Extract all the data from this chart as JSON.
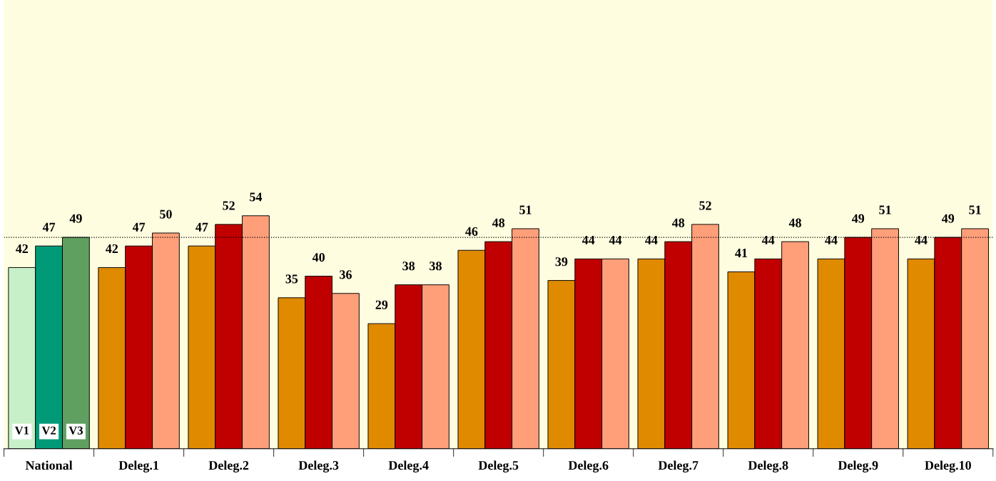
{
  "chart_data": {
    "type": "bar",
    "categories": [
      "National",
      "Deleg.1",
      "Deleg.2",
      "Deleg.3",
      "Deleg.4",
      "Deleg.5",
      "Deleg.6",
      "Deleg.7",
      "Deleg.8",
      "Deleg.9",
      "Deleg.10"
    ],
    "series": [
      {
        "name": "V1",
        "colors": [
          "#c8f0c8",
          "#e08a00",
          "#e08a00",
          "#e08a00",
          "#e08a00",
          "#e08a00",
          "#e08a00",
          "#e08a00",
          "#e08a00",
          "#e08a00",
          "#e08a00"
        ],
        "values": [
          42,
          42,
          47,
          35,
          29,
          46,
          39,
          44,
          41,
          44,
          44
        ]
      },
      {
        "name": "V2",
        "colors": [
          "#009a78",
          "#c00000",
          "#c00000",
          "#c00000",
          "#c00000",
          "#c00000",
          "#c00000",
          "#c00000",
          "#c00000",
          "#c00000",
          "#c00000"
        ],
        "values": [
          47,
          47,
          52,
          40,
          38,
          48,
          44,
          48,
          44,
          49,
          49
        ]
      },
      {
        "name": "V3",
        "colors": [
          "#5fa060",
          "#ff9f7a",
          "#ff9f7a",
          "#ff9f7a",
          "#ff9f7a",
          "#ff9f7a",
          "#ff9f7a",
          "#ff9f7a",
          "#ff9f7a",
          "#ff9f7a",
          "#ff9f7a"
        ],
        "values": [
          49,
          50,
          54,
          36,
          38,
          51,
          44,
          52,
          48,
          51,
          51
        ]
      }
    ],
    "ylim": [
      0,
      104
    ],
    "data_labels": true,
    "ref_lines": [
      {
        "axis": "y",
        "value": 49,
        "color": "#000000",
        "line_style": "dotted"
      }
    ],
    "grid": false,
    "legend": false
  }
}
